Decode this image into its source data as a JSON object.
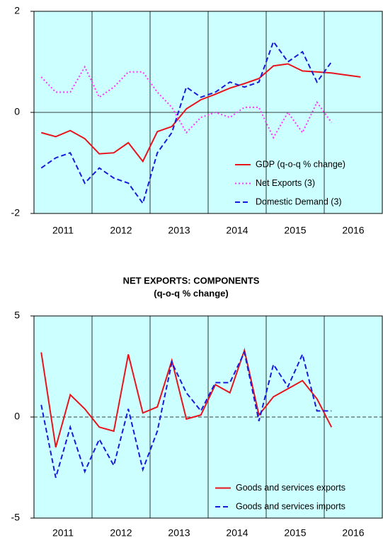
{
  "chart_data": [
    {
      "type": "line",
      "x": [
        2011.125,
        2011.375,
        2011.625,
        2011.875,
        2012.125,
        2012.375,
        2012.625,
        2012.875,
        2013.125,
        2013.375,
        2013.625,
        2013.875,
        2014.125,
        2014.375,
        2014.625,
        2014.875,
        2015.125,
        2015.375,
        2015.625,
        2015.875,
        2016.125,
        2016.375,
        2016.625
      ],
      "series": [
        {
          "name": "GDP (q-o-q % change)",
          "color": "#e8141c",
          "dash": "solid",
          "values": [
            -0.4,
            -0.48,
            -0.36,
            -0.52,
            -0.82,
            -0.8,
            -0.6,
            -0.97,
            -0.38,
            -0.28,
            0.07,
            0.25,
            0.36,
            0.48,
            0.57,
            0.67,
            0.92,
            0.96,
            0.82,
            0.8,
            0.78,
            0.74,
            0.7
          ]
        },
        {
          "name": "Net Exports (3)",
          "color": "#ff33ff",
          "dash": "dotted",
          "values": [
            0.7,
            0.4,
            0.4,
            0.9,
            0.3,
            0.5,
            0.8,
            0.8,
            0.4,
            0.1,
            -0.4,
            -0.1,
            0,
            -0.1,
            0.1,
            0.1,
            -0.5,
            0,
            -0.4,
            0.2,
            -0.2,
            null,
            null
          ]
        },
        {
          "name": "Domestic Demand (3)",
          "color": "#1a1adc",
          "dash": "dashed",
          "values": [
            -1.1,
            -0.9,
            -0.8,
            -1.4,
            -1.1,
            -1.3,
            -1.4,
            -1.8,
            -0.8,
            -0.4,
            0.5,
            0.3,
            0.4,
            0.6,
            0.5,
            0.6,
            1.4,
            1.0,
            1.2,
            0.6,
            1.0,
            null,
            null
          ]
        }
      ],
      "xlim": [
        2011,
        2017
      ],
      "xticks": [
        {
          "value": 2011.5,
          "label": "2011"
        },
        {
          "value": 2012.5,
          "label": "2012"
        },
        {
          "value": 2013.5,
          "label": "2013"
        },
        {
          "value": 2014.5,
          "label": "2014"
        },
        {
          "value": 2015.5,
          "label": "2015"
        },
        {
          "value": 2016.5,
          "label": "2016"
        }
      ],
      "xgrid": [
        2012,
        2013,
        2014,
        2015,
        2016
      ],
      "ylim": [
        -2,
        2
      ],
      "yticks": [
        -2,
        0,
        2
      ],
      "zero_line": "solid",
      "legend": "lower right",
      "background": "#ccffff"
    },
    {
      "type": "line",
      "title": "NET EXPORTS: COMPONENTS",
      "subtitle": "(q-o-q % change)",
      "x": [
        2011.125,
        2011.375,
        2011.625,
        2011.875,
        2012.125,
        2012.375,
        2012.625,
        2012.875,
        2013.125,
        2013.375,
        2013.625,
        2013.875,
        2014.125,
        2014.375,
        2014.625,
        2014.875,
        2015.125,
        2015.375,
        2015.625,
        2015.875,
        2016.125
      ],
      "series": [
        {
          "name": "Goods and services exports",
          "color": "#e8141c",
          "dash": "solid",
          "values": [
            3.2,
            -1.5,
            1.1,
            0.4,
            -0.5,
            -0.7,
            3.1,
            0.2,
            0.5,
            2.8,
            -0.1,
            0.1,
            1.6,
            1.2,
            3.3,
            0.1,
            1.0,
            1.4,
            1.8,
            0.9,
            -0.5
          ]
        },
        {
          "name": "Goods and services imports",
          "color": "#1a1adc",
          "dash": "dashed",
          "values": [
            0.6,
            -3.0,
            -0.5,
            -2.7,
            -1.1,
            -2.4,
            0.4,
            -2.6,
            -0.7,
            2.7,
            1.2,
            0.3,
            1.7,
            1.7,
            3.2,
            -0.2,
            2.6,
            1.5,
            3.1,
            0.3,
            0.3
          ]
        }
      ],
      "xlim": [
        2011,
        2017
      ],
      "xticks": [
        {
          "value": 2011.5,
          "label": "2011"
        },
        {
          "value": 2012.5,
          "label": "2012"
        },
        {
          "value": 2013.5,
          "label": "2013"
        },
        {
          "value": 2014.5,
          "label": "2014"
        },
        {
          "value": 2015.5,
          "label": "2015"
        },
        {
          "value": 2016.5,
          "label": "2016"
        }
      ],
      "xgrid": [
        2012,
        2013,
        2014,
        2015,
        2016
      ],
      "ylim": [
        -5,
        5
      ],
      "yticks": [
        -5,
        0,
        5
      ],
      "zero_line": "dashed",
      "legend": "lower right",
      "background": "#ccffff"
    }
  ]
}
